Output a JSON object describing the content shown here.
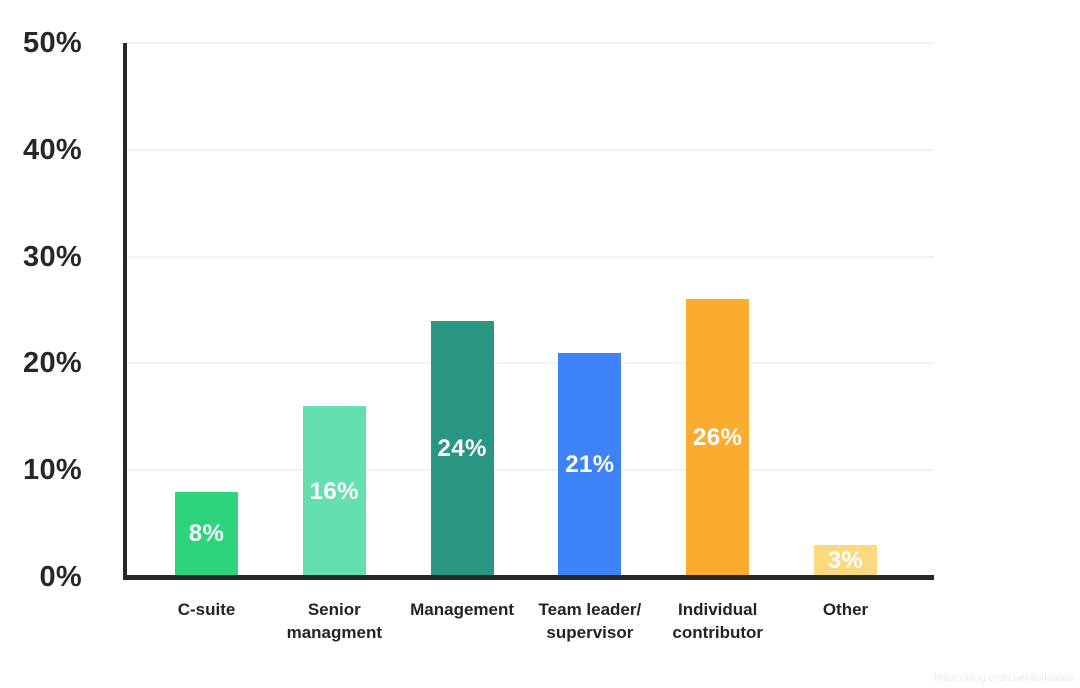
{
  "watermark": "https://blog.csdn.net/liumiaocn",
  "chart_data": {
    "type": "bar",
    "title": "",
    "categories": [
      "C-suite",
      "Senior\nmanagment",
      "Management",
      "Team leader/\nsupervisor",
      "Individual\ncontributor",
      "Other"
    ],
    "values": [
      8,
      16,
      24,
      21,
      26,
      3
    ],
    "value_labels": [
      "8%",
      "16%",
      "24%",
      "21%",
      "26%",
      "3%"
    ],
    "bar_colors": [
      "#2ed37e",
      "#63dfb0",
      "#2a9681",
      "#3e82f7",
      "#fbac2f",
      "#fbd97e"
    ],
    "value_label_color": "#ffffff",
    "y_ticks": [
      "0%",
      "10%",
      "20%",
      "30%",
      "40%",
      "50%"
    ],
    "y_tick_values": [
      0,
      10,
      20,
      30,
      40,
      50
    ],
    "ylim": [
      0,
      50
    ],
    "xlabel": "",
    "ylabel": "",
    "grid": true,
    "legend": false,
    "axis_color": "#27272a",
    "grid_color": "#f2f2f2"
  }
}
